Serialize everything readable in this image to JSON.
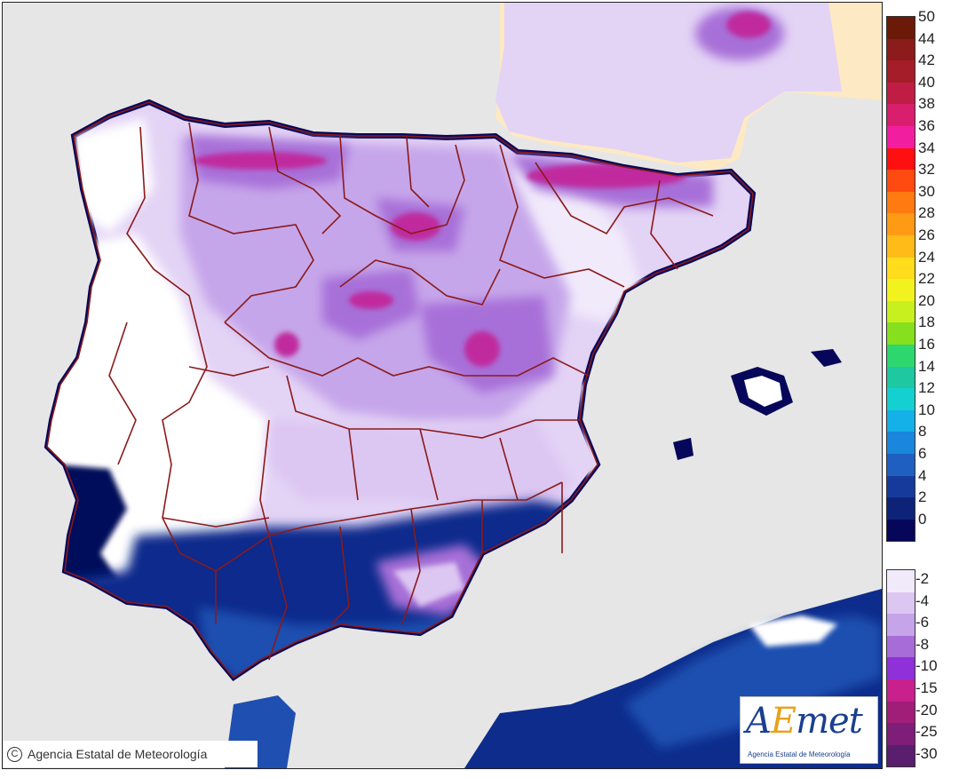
{
  "map": {
    "copyright_text": "Agencia Estatal de Meteorología",
    "copyright_symbol": "C",
    "logo": {
      "text_a": "A",
      "text_e": "E",
      "text_rest": "met",
      "subtitle": "Agencia Estatal de Meteorología"
    },
    "colors": {
      "sea": "#e6e6e6",
      "foreign_land": "#fde9c3",
      "border_lines": "#8b1a1a",
      "minus2": "#ffffff",
      "minus4": "#e3d3f5",
      "minus6": "#c6a6ea",
      "minus8": "#a770d8",
      "minus10": "#8f3fd0",
      "minus15": "#c02a9e",
      "warm0_2": "#05065a",
      "warm2_4": "#0d2c8c",
      "warm4_6": "#1f4fb0"
    }
  },
  "legend": {
    "positive": [
      {
        "label": "50",
        "color": "#6b1a08"
      },
      {
        "label": "44",
        "color": "#8c1b1b"
      },
      {
        "label": "42",
        "color": "#a61d2a"
      },
      {
        "label": "40",
        "color": "#c01d45"
      },
      {
        "label": "38",
        "color": "#d91e6e"
      },
      {
        "label": "36",
        "color": "#f21ea0"
      },
      {
        "label": "34",
        "color": "#ff1010"
      },
      {
        "label": "32",
        "color": "#ff4a10"
      },
      {
        "label": "30",
        "color": "#ff7a10"
      },
      {
        "label": "28",
        "color": "#ff9a14"
      },
      {
        "label": "26",
        "color": "#ffbb18"
      },
      {
        "label": "24",
        "color": "#ffdc1c"
      },
      {
        "label": "22",
        "color": "#f2f21e"
      },
      {
        "label": "20",
        "color": "#c8f01e"
      },
      {
        "label": "18",
        "color": "#86e01e"
      },
      {
        "label": "16",
        "color": "#2ed66e"
      },
      {
        "label": "14",
        "color": "#1ec8a0"
      },
      {
        "label": "12",
        "color": "#14d0d0"
      },
      {
        "label": "10",
        "color": "#14b0e8"
      },
      {
        "label": "8",
        "color": "#1a86dc"
      },
      {
        "label": "6",
        "color": "#1f5fc0"
      },
      {
        "label": "4",
        "color": "#163a9c"
      },
      {
        "label": "2",
        "color": "#0d2378"
      },
      {
        "label": "0",
        "color": "#06075a"
      }
    ],
    "negative": [
      {
        "label": "-2",
        "color": "#f1eafb"
      },
      {
        "label": "-4",
        "color": "#dcc6f2"
      },
      {
        "label": "-6",
        "color": "#c6a4ea"
      },
      {
        "label": "-8",
        "color": "#a76cd8"
      },
      {
        "label": "-10",
        "color": "#8f30d8"
      },
      {
        "label": "-15",
        "color": "#c8208c"
      },
      {
        "label": "-20",
        "color": "#a01e78"
      },
      {
        "label": "-25",
        "color": "#7e1e78"
      },
      {
        "label": "-30",
        "color": "#5a1e6e"
      }
    ]
  }
}
